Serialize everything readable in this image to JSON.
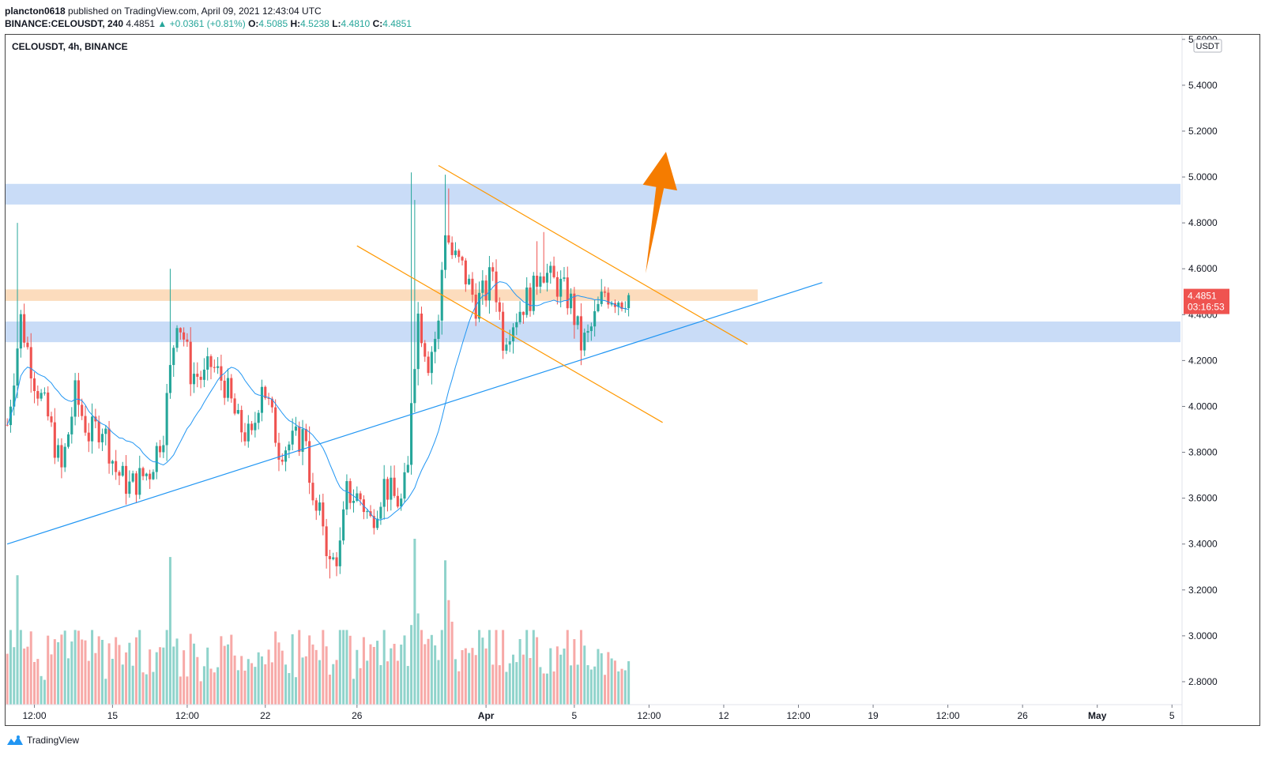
{
  "header": {
    "publisher": "plancton0618",
    "published_text": "published on TradingView.com, April 09, 2021 12:43:04 UTC",
    "symbol_line": "BINANCE:CELOUSDT, 240",
    "last": "4.4851",
    "change": "+0.0361 (+0.81%)",
    "open_label": "O:",
    "open": "4.5085",
    "high_label": "H:",
    "high": "4.5238",
    "low_label": "L:",
    "low": "4.4810",
    "close_label": "C:",
    "close": "4.4851"
  },
  "chart_data": {
    "type": "candlestick",
    "title": "CELOUSDT, 4h, BINANCE",
    "currency": "USDT",
    "ylim": [
      2.7,
      5.62
    ],
    "y_ticks": [
      "5.6000",
      "5.4000",
      "5.2000",
      "5.0000",
      "4.8000",
      "4.6000",
      "4.4000",
      "4.2000",
      "4.0000",
      "3.8000",
      "3.6000",
      "3.4000",
      "3.2000",
      "3.0000",
      "2.8000"
    ],
    "x_ticks": [
      "12:00",
      "15",
      "12:00",
      "22",
      "26",
      "Apr",
      "5",
      "12:00",
      "12",
      "12:00",
      "19",
      "12:00",
      "26",
      "May",
      "5"
    ],
    "x_tick_bar_index": [
      8,
      31,
      53,
      76,
      103,
      141,
      167,
      189,
      211,
      233,
      255,
      277,
      299,
      321,
      343
    ],
    "bars_visible": 346,
    "price_label": "4.4851",
    "countdown_label": "03:16:53",
    "colors": {
      "up": "#26a69a",
      "down": "#ef5350",
      "ma": "#2196f3",
      "trend": "#2196f3",
      "channel": "#ff9800",
      "arrow": "#f57c00",
      "zone_blue": "#c9dcf7",
      "zone_orange": "#fcdcbd"
    },
    "zones": [
      {
        "color": "blue",
        "from": 4.88,
        "to": 4.97
      },
      {
        "color": "orange",
        "from": 4.46,
        "to": 4.51,
        "until_bar": 221
      },
      {
        "color": "blue",
        "from": 4.28,
        "to": 4.37
      }
    ],
    "anchors": [
      [
        0,
        3.92
      ],
      [
        4,
        4.38
      ],
      [
        8,
        4.12
      ],
      [
        12,
        3.95
      ],
      [
        16,
        3.72
      ],
      [
        20,
        4.05
      ],
      [
        24,
        3.88
      ],
      [
        28,
        3.92
      ],
      [
        32,
        3.72
      ],
      [
        36,
        3.65
      ],
      [
        42,
        3.72
      ],
      [
        46,
        3.9
      ],
      [
        50,
        4.4
      ],
      [
        52,
        4.3
      ],
      [
        54,
        4.15
      ],
      [
        58,
        4.12
      ],
      [
        60,
        4.18
      ],
      [
        64,
        4.1
      ],
      [
        68,
        3.92
      ],
      [
        72,
        3.85
      ],
      [
        75,
        4.12
      ],
      [
        77,
        4.0
      ],
      [
        80,
        3.82
      ],
      [
        84,
        3.84
      ],
      [
        88,
        3.88
      ],
      [
        90,
        3.55
      ],
      [
        93,
        3.5
      ],
      [
        95,
        3.3
      ],
      [
        98,
        3.38
      ],
      [
        100,
        3.62
      ],
      [
        104,
        3.6
      ],
      [
        107,
        3.5
      ],
      [
        111,
        3.66
      ],
      [
        114,
        3.6
      ],
      [
        116,
        3.58
      ],
      [
        118,
        3.72
      ],
      [
        119,
        4.05
      ],
      [
        121,
        4.4
      ],
      [
        124,
        4.2
      ],
      [
        127,
        4.35
      ],
      [
        128,
        4.6
      ],
      [
        129,
        4.78
      ],
      [
        131,
        4.66
      ],
      [
        134,
        4.6
      ],
      [
        138,
        4.45
      ],
      [
        141,
        4.5
      ],
      [
        143,
        4.6
      ],
      [
        146,
        4.3
      ],
      [
        149,
        4.38
      ],
      [
        152,
        4.45
      ],
      [
        155,
        4.5
      ],
      [
        157,
        4.62
      ],
      [
        160,
        4.55
      ],
      [
        163,
        4.52
      ],
      [
        166,
        4.45
      ],
      [
        169,
        4.27
      ],
      [
        171,
        4.3
      ],
      [
        173,
        4.38
      ],
      [
        176,
        4.5
      ],
      [
        179,
        4.48
      ],
      [
        181,
        4.47
      ],
      [
        183,
        4.5
      ]
    ],
    "volume_spikes": {
      "3": 0.78,
      "48": 0.89,
      "119": 0.48,
      "120": 1.0,
      "121": 0.55,
      "129": 0.87,
      "130": 0.63,
      "131": 0.5
    },
    "drawings": {
      "trendline": {
        "from": [
          0,
          3.4
        ],
        "to": [
          240,
          4.54
        ]
      },
      "channel_upper": {
        "from": [
          127,
          5.05
        ],
        "to": [
          218,
          4.27
        ]
      },
      "channel_lower": {
        "from": [
          103,
          4.7
        ],
        "to": [
          193,
          3.93
        ]
      },
      "arrow": {
        "from": [
          188,
          4.58
        ],
        "to": [
          194,
          5.11
        ]
      }
    }
  },
  "footer": {
    "brand": "TradingView"
  }
}
